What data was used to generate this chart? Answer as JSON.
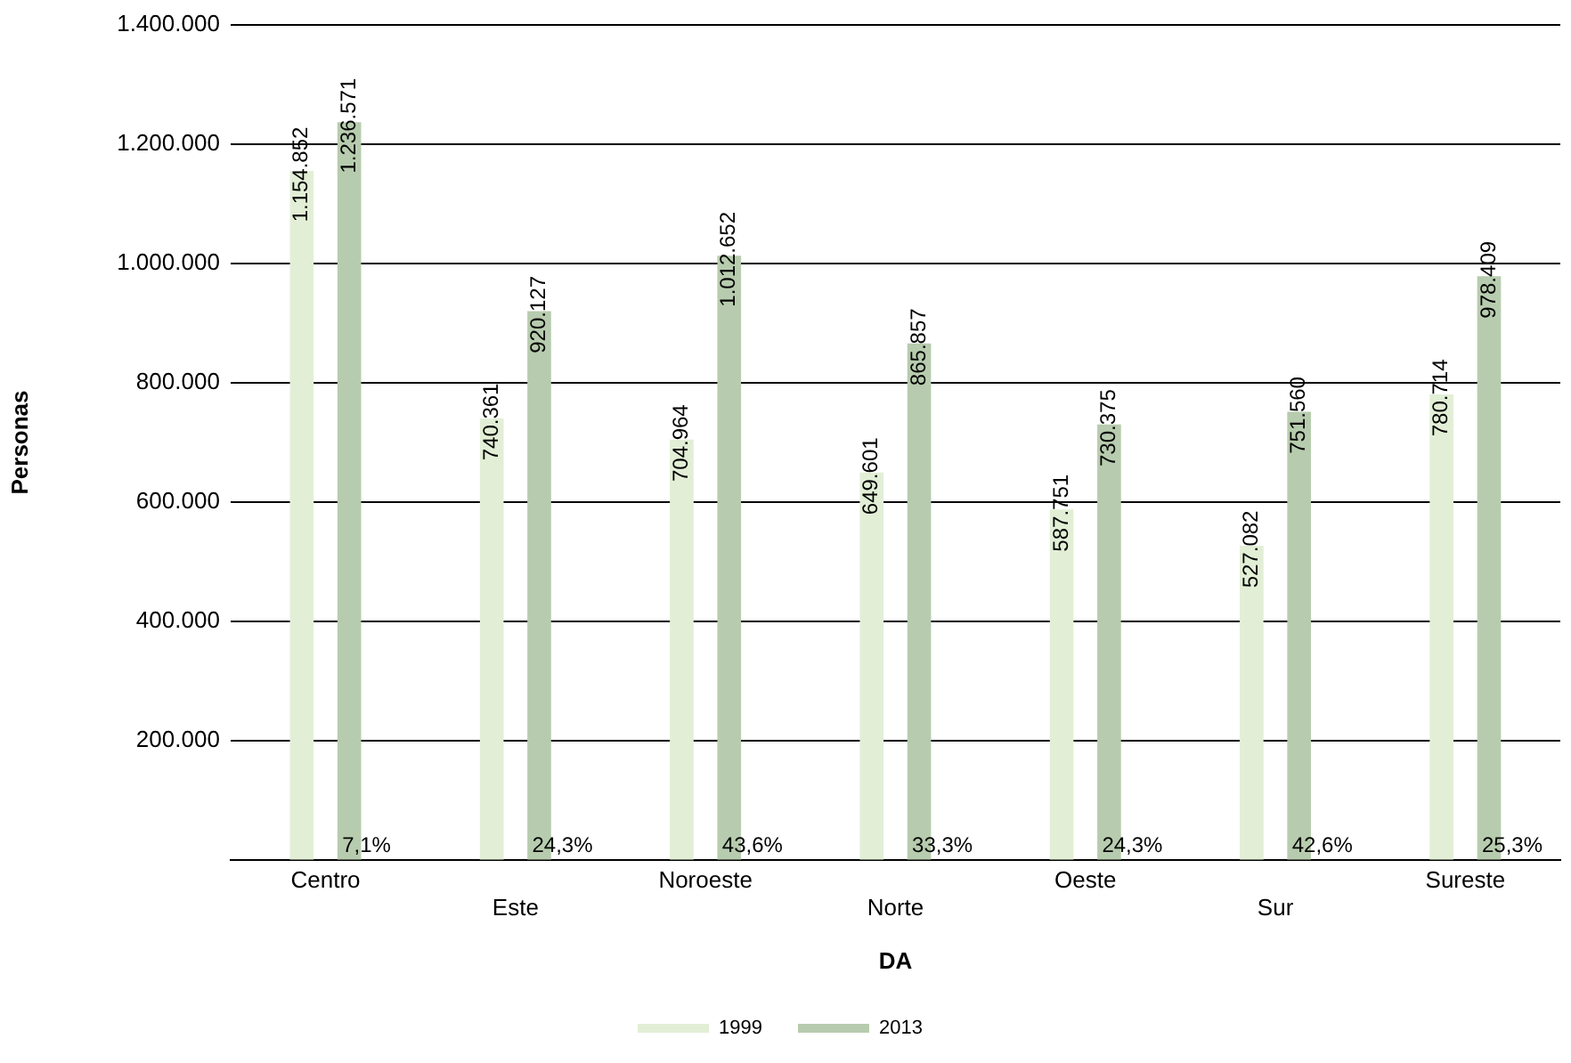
{
  "chart_data": {
    "type": "bar",
    "xlabel": "DA",
    "ylabel": "Personas",
    "categories": [
      "Centro",
      "Este",
      "Noroeste",
      "Norte",
      "Oeste",
      "Sur",
      "Sureste"
    ],
    "series": [
      {
        "name": "1999",
        "color": "#e2efd6",
        "values": [
          1154852,
          740361,
          704964,
          649601,
          587751,
          527082,
          780714
        ],
        "value_labels": [
          "1.154.852",
          "740.361",
          "704.964",
          "649.601",
          "587.751",
          "527.082",
          "780.714"
        ]
      },
      {
        "name": "2013",
        "color": "#b7ccae",
        "values": [
          1236571,
          920127,
          1012652,
          865857,
          730375,
          751560,
          978409
        ],
        "value_labels": [
          "1.236.571",
          "920.127",
          "1.012.652",
          "865.857",
          "730.375",
          "751.560",
          "978.409"
        ]
      }
    ],
    "ylim": [
      0,
      1400000
    ],
    "yticks": [
      {
        "value": 0,
        "label": null
      },
      {
        "value": 200000,
        "label": "200.000"
      },
      {
        "value": 400000,
        "label": "400.000"
      },
      {
        "value": 600000,
        "label": "600.000"
      },
      {
        "value": 800000,
        "label": "800.000"
      },
      {
        "value": 1000000,
        "label": "1.000.000"
      },
      {
        "value": 1200000,
        "label": "1.200.000"
      },
      {
        "value": 1400000,
        "label": "1.400.000"
      }
    ],
    "grid": "y",
    "legend": "bottom",
    "annotations": [
      "7,1%",
      "24,3%",
      "43,6%",
      "33,3%",
      "24,3%",
      "42,6%",
      "25,3%"
    ]
  }
}
